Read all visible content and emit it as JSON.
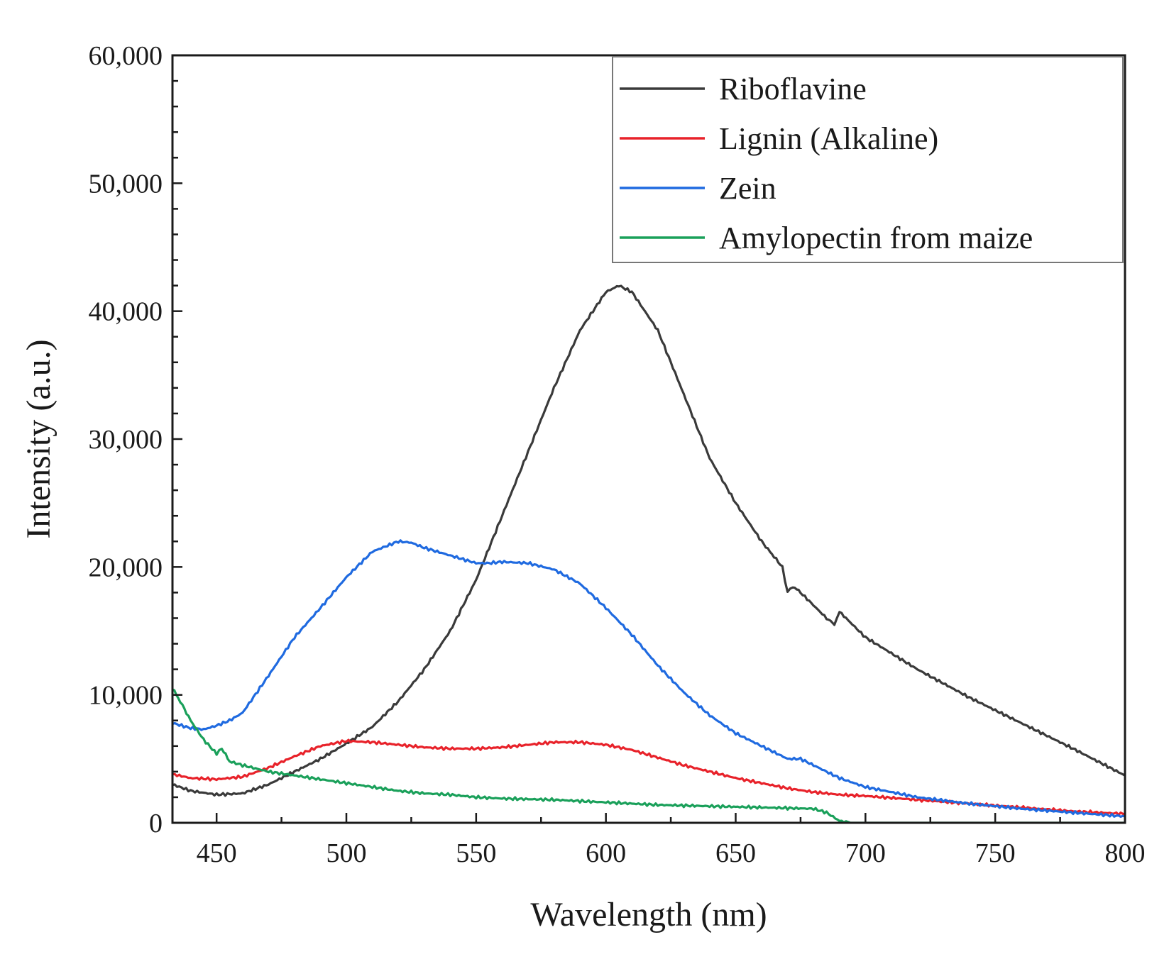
{
  "chart_data": {
    "type": "line",
    "title": "",
    "xlabel": "Wavelength (nm)",
    "ylabel": "Intensity (a.u.)",
    "xlim": [
      433,
      800
    ],
    "ylim": [
      0,
      60000
    ],
    "x_ticks": [
      450,
      500,
      550,
      600,
      650,
      700,
      750,
      800
    ],
    "x_tick_labels": [
      "450",
      "500",
      "550",
      "600",
      "650",
      "700",
      "750",
      "800"
    ],
    "y_ticks": [
      0,
      10000,
      20000,
      30000,
      40000,
      50000,
      60000
    ],
    "y_tick_labels": [
      "0",
      "10,000",
      "20,000",
      "30,000",
      "40,000",
      "50,000",
      "60,000"
    ],
    "legend_position": "top-right",
    "grid": false,
    "series": [
      {
        "name": "Riboflavine",
        "color": "#3a3a3a",
        "x": [
          433,
          440,
          450,
          460,
          470,
          480,
          490,
          500,
          510,
          520,
          530,
          540,
          550,
          560,
          570,
          580,
          590,
          600,
          605,
          610,
          620,
          630,
          640,
          650,
          660,
          668,
          670,
          672,
          675,
          680,
          685,
          688,
          690,
          700,
          720,
          740,
          760,
          780,
          800
        ],
        "y": [
          3000,
          2500,
          2200,
          2300,
          3000,
          4000,
          5000,
          6200,
          7500,
          9500,
          12000,
          15000,
          19000,
          24000,
          29000,
          34000,
          38500,
          41500,
          42000,
          41500,
          38500,
          33500,
          28500,
          25000,
          22000,
          20000,
          18000,
          18500,
          18000,
          17000,
          16000,
          15500,
          16500,
          14500,
          12000,
          9800,
          7800,
          5800,
          3700
        ]
      },
      {
        "name": "Lignin (Alkaline)",
        "color": "#e8222a",
        "x": [
          433,
          440,
          450,
          460,
          470,
          480,
          490,
          500,
          510,
          520,
          530,
          540,
          550,
          560,
          570,
          580,
          590,
          600,
          610,
          620,
          630,
          640,
          650,
          660,
          670,
          680,
          690,
          700,
          720,
          740,
          760,
          780,
          800
        ],
        "y": [
          3800,
          3500,
          3400,
          3600,
          4300,
          5200,
          6000,
          6400,
          6300,
          6100,
          5900,
          5800,
          5800,
          5900,
          6100,
          6300,
          6300,
          6100,
          5700,
          5100,
          4500,
          4000,
          3500,
          3100,
          2700,
          2400,
          2200,
          2100,
          1800,
          1500,
          1200,
          900,
          700
        ]
      },
      {
        "name": "Zein",
        "color": "#1f6ae0",
        "x": [
          433,
          440,
          445,
          450,
          455,
          460,
          470,
          480,
          490,
          500,
          510,
          520,
          525,
          530,
          540,
          550,
          555,
          560,
          570,
          580,
          590,
          600,
          610,
          620,
          630,
          640,
          650,
          660,
          670,
          675,
          680,
          690,
          700,
          720,
          740,
          760,
          780,
          800
        ],
        "y": [
          7800,
          7400,
          7300,
          7600,
          8000,
          8600,
          11500,
          14500,
          16800,
          19200,
          21200,
          22000,
          21900,
          21500,
          20900,
          20300,
          20300,
          20400,
          20300,
          19800,
          18700,
          16800,
          14700,
          12300,
          10200,
          8400,
          7000,
          6000,
          5000,
          5000,
          4500,
          3500,
          2800,
          2000,
          1500,
          1100,
          800,
          500
        ]
      },
      {
        "name": "Amylopectin from maize",
        "color": "#1aa05a",
        "x": [
          433,
          436,
          440,
          445,
          450,
          452,
          455,
          460,
          470,
          480,
          490,
          500,
          510,
          520,
          530,
          540,
          550,
          560,
          570,
          580,
          590,
          600,
          610,
          620,
          630,
          640,
          650,
          660,
          670,
          680,
          685,
          690,
          695,
          700,
          720,
          740,
          760,
          780,
          800
        ],
        "y": [
          10500,
          9500,
          8000,
          6500,
          5400,
          5800,
          4800,
          4500,
          4000,
          3700,
          3400,
          3100,
          2800,
          2500,
          2300,
          2200,
          2000,
          1900,
          1850,
          1800,
          1700,
          1600,
          1500,
          1400,
          1350,
          1300,
          1250,
          1200,
          1150,
          1100,
          800,
          150,
          0,
          0,
          0,
          0,
          0,
          0,
          0
        ]
      }
    ]
  }
}
